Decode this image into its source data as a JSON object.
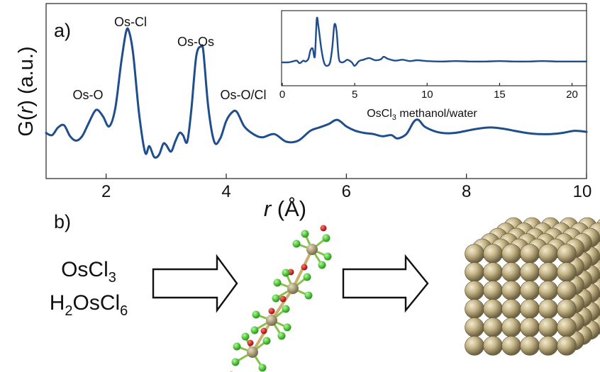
{
  "panel_a": {
    "label": "a)",
    "chart_data": [
      {
        "type": "line",
        "title": "",
        "xlabel_italic": "r",
        "xlabel_rest": " (Å)",
        "ylabel_pre": "G(",
        "ylabel_italic": "r",
        "ylabel_post": ") (a.u.)",
        "xlim": [
          1,
          10
        ],
        "xticks": [
          "2",
          "4",
          "6",
          "8",
          "10"
        ],
        "color": "#1f4e8c",
        "peak_labels": [
          "Os-Cl",
          "Os-O",
          "Os-Os",
          "Os-O/Cl"
        ],
        "series": [
          {
            "x": [
              1.0,
              1.1,
              1.2,
              1.3,
              1.4,
              1.5,
              1.6,
              1.7,
              1.8,
              1.86,
              1.95,
              2.05,
              2.15,
              2.25,
              2.33,
              2.38,
              2.45,
              2.55,
              2.65,
              2.72,
              2.8,
              2.88,
              2.95,
              3.0,
              3.08,
              3.15,
              3.22,
              3.28,
              3.35,
              3.42,
              3.5,
              3.58,
              3.62,
              3.7,
              3.8,
              3.9,
              4.0,
              4.1,
              4.18,
              4.3,
              4.45,
              4.6,
              4.8,
              5.0,
              5.2,
              5.4,
              5.55,
              5.7,
              5.85,
              6.0,
              6.15,
              6.3,
              6.45,
              6.6,
              6.75,
              6.85,
              7.0,
              7.12,
              7.2,
              7.3,
              7.45,
              7.6,
              7.8,
              8.0,
              8.2,
              8.4,
              8.6,
              8.8,
              9.0,
              9.2,
              9.4,
              9.6,
              9.8,
              10.0
            ],
            "y": [
              0.08,
              0.06,
              0.13,
              0.15,
              0.05,
              0.01,
              0.05,
              0.16,
              0.27,
              0.29,
              0.23,
              0.14,
              0.3,
              0.72,
              1.0,
              1.01,
              0.8,
              0.25,
              -0.1,
              -0.04,
              -0.14,
              -0.12,
              -0.02,
              -0.03,
              -0.09,
              0.0,
              0.08,
              0.06,
              0.0,
              0.3,
              0.78,
              0.87,
              0.82,
              0.32,
              0.0,
              0.03,
              0.19,
              0.27,
              0.27,
              0.14,
              0.07,
              0.04,
              0.07,
              0.0,
              0.01,
              0.1,
              0.13,
              0.16,
              0.2,
              0.14,
              0.1,
              0.08,
              0.07,
              0.05,
              0.06,
              0.03,
              0.07,
              0.18,
              0.2,
              0.14,
              0.1,
              0.08,
              0.08,
              0.1,
              0.12,
              0.13,
              0.12,
              0.1,
              0.08,
              0.07,
              0.07,
              0.08,
              0.1,
              0.09
            ]
          }
        ]
      },
      {
        "type": "line",
        "title": "",
        "xlabel_main": "OsCl",
        "xlabel_sub": "3",
        "xlabel_rest": " methanol/water",
        "xlim": [
          0,
          21
        ],
        "xticks": [
          "0",
          "5",
          "10",
          "15",
          "20"
        ],
        "color": "#1f4e8c",
        "series": [
          {
            "x": [
              0,
              0.4,
              0.7,
              1.0,
              1.2,
              1.45,
              1.6,
              1.8,
              1.95,
              2.1,
              2.25,
              2.38,
              2.5,
              2.7,
              2.9,
              3.1,
              3.3,
              3.45,
              3.6,
              3.75,
              3.9,
              4.1,
              4.3,
              4.5,
              4.8,
              5.0,
              5.3,
              5.6,
              6.0,
              6.4,
              6.8,
              7.0,
              7.3,
              7.8,
              8.3,
              8.8,
              9.3,
              10.0,
              11,
              12,
              13,
              14,
              15,
              16,
              17,
              18,
              19,
              20,
              21
            ],
            "y": [
              0.0,
              0.0,
              0.02,
              0.04,
              -0.02,
              0.04,
              0.02,
              0.08,
              0.28,
              0.32,
              0.14,
              1.0,
              0.82,
              0.3,
              -0.02,
              -0.08,
              0.0,
              0.34,
              0.87,
              0.72,
              0.1,
              0.0,
              0.02,
              0.06,
              0.0,
              -0.08,
              0.03,
              0.06,
              0.1,
              0.05,
              0.07,
              0.13,
              0.08,
              0.04,
              0.06,
              0.03,
              0.05,
              0.03,
              0.02,
              0.03,
              0.02,
              0.02,
              0.03,
              0.02,
              0.02,
              0.03,
              0.02,
              0.02,
              0.02
            ]
          }
        ]
      }
    ]
  },
  "panel_b": {
    "label": "b)",
    "precursor_1_main": "OsCl",
    "precursor_1_sub": "3",
    "precursor_2_a": "H",
    "precursor_2_sub1": "2",
    "precursor_2_b": "OsCl",
    "precursor_2_sub2": "6",
    "colors": {
      "os_atom": "#b5a37a",
      "cl_atom": "#44cc33",
      "o_atom": "#cc1111",
      "nanoparticle": "#c8b88a"
    }
  }
}
